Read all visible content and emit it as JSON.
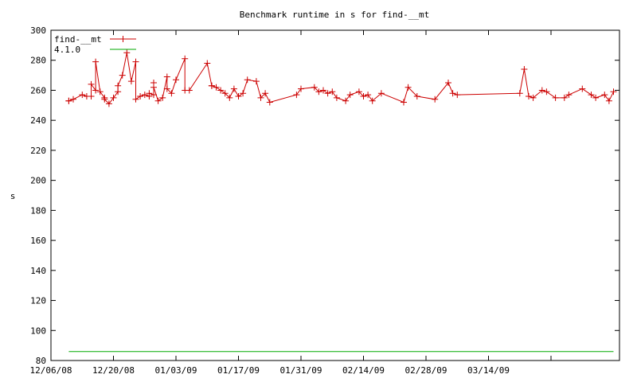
{
  "chart_data": {
    "type": "line",
    "title": "Benchmark runtime in s for find-__mt",
    "xlabel": "",
    "ylabel": "s",
    "ylim": [
      80,
      300
    ],
    "yticks": [
      80,
      100,
      120,
      140,
      160,
      180,
      200,
      220,
      240,
      260,
      280,
      300
    ],
    "xlim": [
      "2008-12-06",
      "2009-04-09"
    ],
    "xticks": [
      {
        "date": "2008-12-06",
        "label": "12/06/08"
      },
      {
        "date": "2008-12-20",
        "label": "12/20/08"
      },
      {
        "date": "2009-01-03",
        "label": "01/03/09"
      },
      {
        "date": "2009-01-17",
        "label": "01/17/09"
      },
      {
        "date": "2009-01-31",
        "label": "01/31/09"
      },
      {
        "date": "2009-02-14",
        "label": "02/14/09"
      },
      {
        "date": "2009-02-28",
        "label": "02/28/09"
      },
      {
        "date": "2009-03-14",
        "label": "03/14/09"
      }
    ],
    "grid": false,
    "legend": "top-left",
    "series": [
      {
        "name": "find-__mt",
        "color": "#cc0000",
        "marker": "plus",
        "points": [
          [
            "2008-12-10",
            253
          ],
          [
            "2008-12-10",
            253
          ],
          [
            "2008-12-11",
            254
          ],
          [
            "2008-12-13",
            257
          ],
          [
            "2008-12-14",
            256
          ],
          [
            "2008-12-15",
            256
          ],
          [
            "2008-12-15",
            264
          ],
          [
            "2008-12-16",
            260
          ],
          [
            "2008-12-16",
            279
          ],
          [
            "2008-12-17",
            259
          ],
          [
            "2008-12-18",
            255
          ],
          [
            "2008-12-18",
            254
          ],
          [
            "2008-12-19",
            251
          ],
          [
            "2008-12-20",
            255
          ],
          [
            "2008-12-21",
            259
          ],
          [
            "2008-12-21",
            263
          ],
          [
            "2008-12-22",
            270
          ],
          [
            "2008-12-23",
            285
          ],
          [
            "2008-12-24",
            266
          ],
          [
            "2008-12-25",
            279
          ],
          [
            "2008-12-25",
            254
          ],
          [
            "2008-12-26",
            256
          ],
          [
            "2008-12-27",
            257
          ],
          [
            "2008-12-28",
            256
          ],
          [
            "2008-12-28",
            258
          ],
          [
            "2008-12-29",
            257
          ],
          [
            "2008-12-29",
            265
          ],
          [
            "2008-12-29",
            262
          ],
          [
            "2008-12-30",
            253
          ],
          [
            "2008-12-31",
            255
          ],
          [
            "2009-01-01",
            269
          ],
          [
            "2009-01-01",
            261
          ],
          [
            "2009-01-02",
            258
          ],
          [
            "2009-01-03",
            267
          ],
          [
            "2009-01-05",
            281
          ],
          [
            "2009-01-05",
            260
          ],
          [
            "2009-01-06",
            260
          ],
          [
            "2009-01-10",
            278
          ],
          [
            "2009-01-11",
            263
          ],
          [
            "2009-01-11",
            263
          ],
          [
            "2009-01-12",
            262
          ],
          [
            "2009-01-13",
            260
          ],
          [
            "2009-01-14",
            258
          ],
          [
            "2009-01-15",
            255
          ],
          [
            "2009-01-16",
            261
          ],
          [
            "2009-01-17",
            256
          ],
          [
            "2009-01-18",
            258
          ],
          [
            "2009-01-19",
            267
          ],
          [
            "2009-01-21",
            266
          ],
          [
            "2009-01-22",
            255
          ],
          [
            "2009-01-23",
            258
          ],
          [
            "2009-01-24",
            252
          ],
          [
            "2009-01-30",
            257
          ],
          [
            "2009-01-31",
            261
          ],
          [
            "2009-02-03",
            262
          ],
          [
            "2009-02-04",
            259
          ],
          [
            "2009-02-05",
            260
          ],
          [
            "2009-02-06",
            258
          ],
          [
            "2009-02-07",
            259
          ],
          [
            "2009-02-08",
            255
          ],
          [
            "2009-02-10",
            253
          ],
          [
            "2009-02-11",
            257
          ],
          [
            "2009-02-13",
            259
          ],
          [
            "2009-02-14",
            256
          ],
          [
            "2009-02-15",
            257
          ],
          [
            "2009-02-16",
            253
          ],
          [
            "2009-02-18",
            258
          ],
          [
            "2009-02-23",
            252
          ],
          [
            "2009-02-24",
            262
          ],
          [
            "2009-02-26",
            256
          ],
          [
            "2009-03-02",
            254
          ],
          [
            "2009-03-05",
            265
          ],
          [
            "2009-03-06",
            258
          ],
          [
            "2009-03-07",
            257
          ],
          [
            "2009-03-21",
            258
          ],
          [
            "2009-03-22",
            274
          ],
          [
            "2009-03-23",
            256
          ],
          [
            "2009-03-24",
            255
          ],
          [
            "2009-03-26",
            260
          ],
          [
            "2009-03-27",
            259
          ],
          [
            "2009-03-29",
            255
          ],
          [
            "2009-03-31",
            255
          ],
          [
            "2009-04-01",
            257
          ],
          [
            "2009-04-04",
            261
          ],
          [
            "2009-04-06",
            257
          ],
          [
            "2009-04-07",
            255
          ],
          [
            "2009-04-09",
            257
          ],
          [
            "2009-04-10",
            253
          ],
          [
            "2009-04-11",
            259
          ]
        ]
      },
      {
        "name": "4.1.0",
        "color": "#00aa00",
        "marker": "none",
        "points": [
          [
            "2008-12-10",
            86
          ],
          [
            "2009-04-11",
            86
          ]
        ]
      }
    ]
  }
}
